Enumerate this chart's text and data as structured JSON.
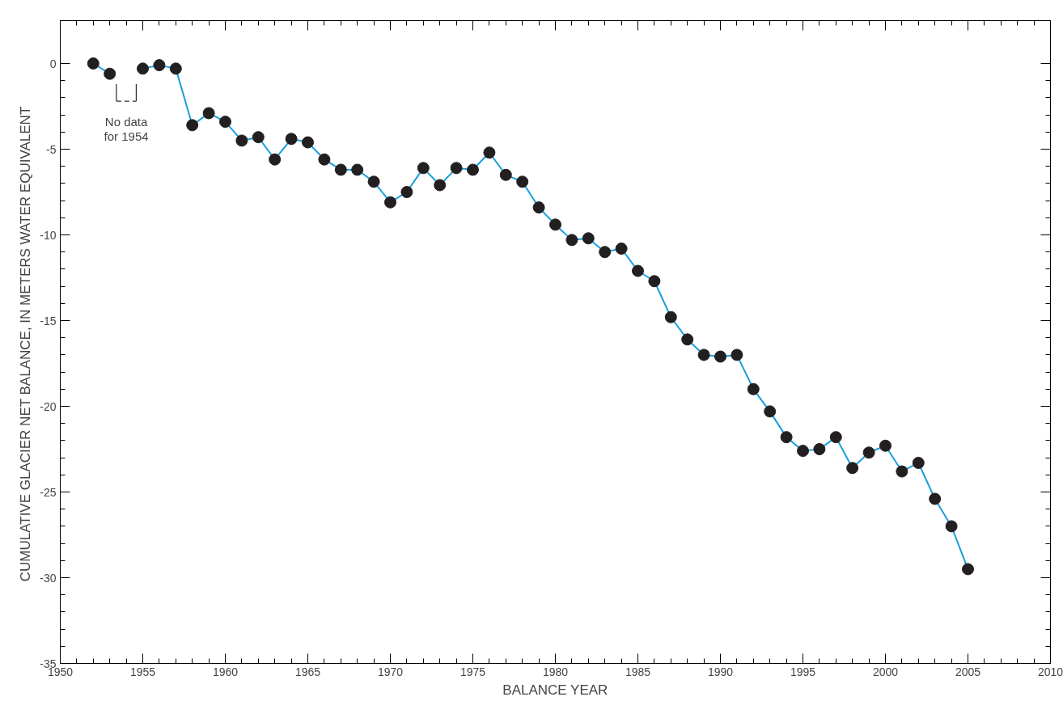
{
  "chart_data": {
    "type": "line",
    "xlabel": "BALANCE YEAR",
    "ylabel": "CUMULATIVE GLACIER NET BALANCE,  IN METERS WATER EQUIVALENT",
    "x": [
      1952,
      1953,
      1954,
      1955,
      1956,
      1957,
      1958,
      1959,
      1960,
      1961,
      1962,
      1963,
      1964,
      1965,
      1966,
      1967,
      1968,
      1969,
      1970,
      1971,
      1972,
      1973,
      1974,
      1975,
      1976,
      1977,
      1978,
      1979,
      1980,
      1981,
      1982,
      1983,
      1984,
      1985,
      1986,
      1987,
      1988,
      1989,
      1990,
      1991,
      1992,
      1993,
      1994,
      1995,
      1996,
      1997,
      1998,
      1999,
      2000,
      2001,
      2002,
      2003,
      2004,
      2005
    ],
    "series": [
      {
        "color": "#1a9fdc",
        "colors": [
          "#231f20",
          "#231f20",
          "#231f20",
          "#231f20",
          "#231f20",
          "#231f20",
          "#231f20",
          "#231f20",
          "#231f20",
          "#231f20",
          "#231f20",
          "#231f20",
          "#231f20",
          "#231f20",
          "#231f20",
          "#231f20",
          "#231f20",
          "#231f20",
          "#231f20",
          "#231f20",
          "#231f20",
          "#231f20",
          "#231f20",
          "#231f20",
          "#231f20",
          "#231f20",
          "#231f20",
          "#231f20",
          "#231f20",
          "#231f20",
          "#231f20",
          "#231f20",
          "#231f20",
          "#231f20",
          "#231f20",
          "#231f20",
          "#231f20",
          "#231f20",
          "#231f20",
          "#231f20",
          "#231f20",
          "#231f20",
          "#231f20",
          "#231f20",
          "#231f20",
          "#231f20",
          "#231f20",
          "#231f20",
          "#231f20",
          "#231f20",
          "#231f20",
          "#231f20",
          "#231f20",
          "#231f20"
        ],
        "values": [
          0,
          -0.6,
          null,
          -0.3,
          -0.1,
          -0.3,
          -3.6,
          -2.9,
          -3.4,
          -4.5,
          -4.3,
          -5.6,
          -4.4,
          -4.6,
          -5.6,
          -6.2,
          -6.2,
          -6.9,
          -8.1,
          -7.5,
          -6.1,
          -7.1,
          -6.1,
          -6.2,
          -5.2,
          -6.5,
          -6.9,
          -8.4,
          -9.4,
          -10.3,
          -10.2,
          -11.0,
          -10.8,
          -12.1,
          -12.7,
          -14.8,
          -16.1,
          -17.0,
          -17.1,
          -17.0,
          -19.0,
          -20.3,
          -21.8,
          -22.6,
          -22.5,
          -21.8,
          -23.6,
          -22.7,
          -22.3,
          -23.8,
          -23.3,
          -25.4,
          -27.0,
          -29.5
        ]
      }
    ],
    "marker": "circle",
    "line_style": "solid",
    "xlim": [
      1950,
      2010
    ],
    "xticks": [
      1950,
      1955,
      1960,
      1965,
      1970,
      1975,
      1980,
      1985,
      1990,
      1995,
      2000,
      2005,
      2010
    ],
    "ylim": [
      -35,
      2.5
    ],
    "yticks": [
      -35,
      -30,
      -25,
      -20,
      -15,
      -10,
      -5,
      0
    ],
    "grid": false,
    "annotations": [
      "No data\nfor 1954"
    ]
  }
}
